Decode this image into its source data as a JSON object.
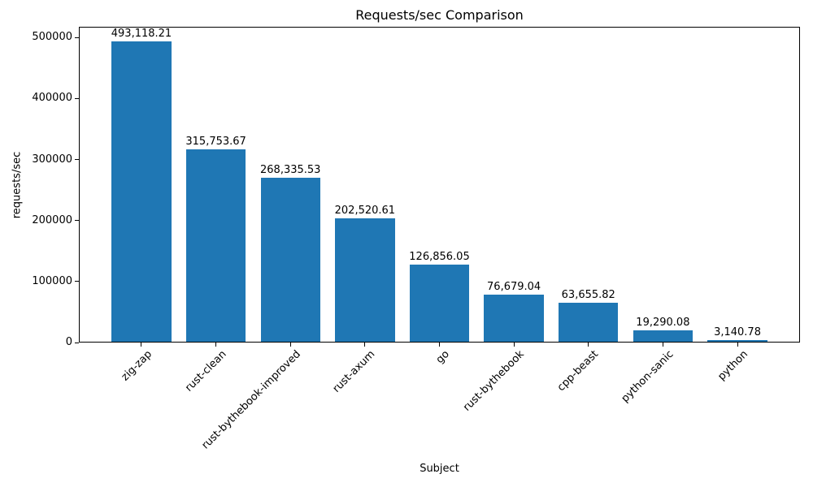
{
  "chart_data": {
    "type": "bar",
    "title": "Requests/sec Comparison",
    "xlabel": "Subject",
    "ylabel": "requests/sec",
    "categories": [
      "zig-zap",
      "rust-clean",
      "rust-bythebook-improved",
      "rust-axum",
      "go",
      "rust-bythebook",
      "cpp-beast",
      "python-sanic",
      "python"
    ],
    "values": [
      493118.21,
      315753.67,
      268335.53,
      202520.61,
      126856.05,
      76679.04,
      63655.82,
      19290.08,
      3140.78
    ],
    "value_labels": [
      "493,118.21",
      "315,753.67",
      "268,335.53",
      "202,520.61",
      "126,856.05",
      "76,679.04",
      "63,655.82",
      "19,290.08",
      "3,140.78"
    ],
    "y_ticks": [
      0,
      100000,
      200000,
      300000,
      400000,
      500000
    ],
    "y_tick_labels": [
      "0",
      "100000",
      "200000",
      "300000",
      "400000",
      "500000"
    ],
    "ylim": [
      0,
      517774
    ],
    "bar_color": "#1f77b4",
    "bar_width_ratio": 0.8,
    "x_margin_units": 0.84,
    "x_tick_label_rotation_deg": 45,
    "grid": false,
    "legend": null
  }
}
